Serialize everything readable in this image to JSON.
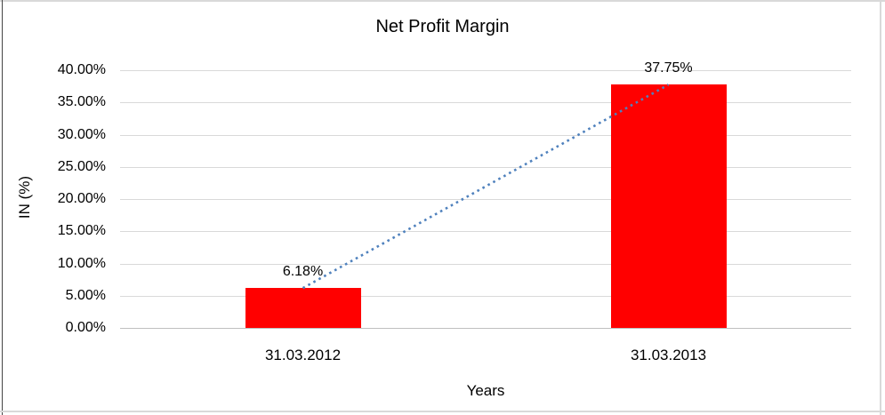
{
  "chart_data": {
    "type": "bar",
    "title": "Net Profit Margin",
    "xlabel": "Years",
    "ylabel": "IN (%)",
    "categories": [
      "31.03.2012",
      "31.03.2013"
    ],
    "values": [
      6.18,
      37.75
    ],
    "data_labels": [
      "6.18%",
      "37.75%"
    ],
    "ylim": [
      0,
      40
    ],
    "yticks": [
      0,
      5,
      10,
      15,
      20,
      25,
      30,
      35,
      40
    ],
    "ytick_labels": [
      "0.00%",
      "5.00%",
      "10.00%",
      "15.00%",
      "20.00%",
      "25.00%",
      "30.00%",
      "35.00%",
      "40.00%"
    ],
    "grid": "horizontal",
    "legend": "none",
    "trendline": {
      "type": "linear",
      "style": "dotted",
      "connects": "bar-tops"
    },
    "colors": {
      "bar": "#FF0000",
      "trendline": "#4F81BD",
      "gridline": "#D9D9D9",
      "axis_line": "#BFBFBF",
      "text": "#000000"
    }
  }
}
